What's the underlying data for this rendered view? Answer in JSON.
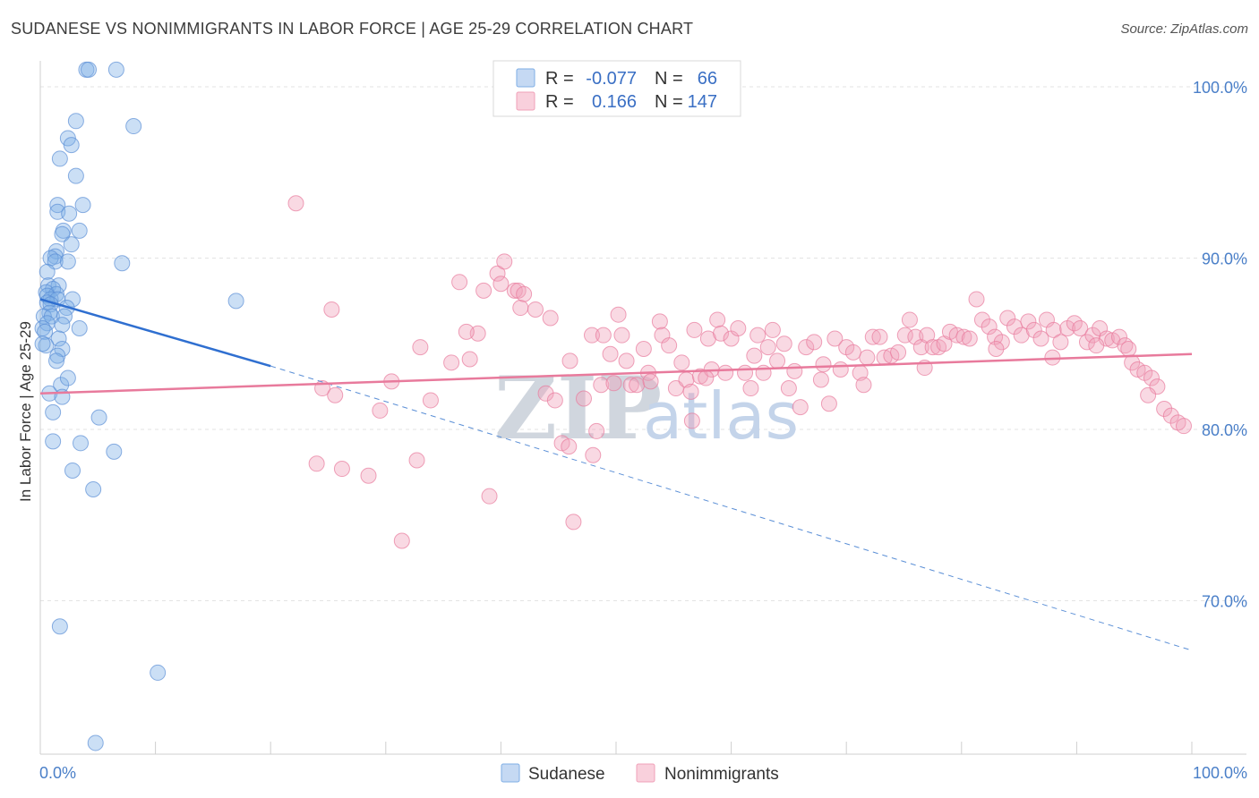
{
  "header": {
    "title": "SUDANESE VS NONIMMIGRANTS IN LABOR FORCE | AGE 25-29 CORRELATION CHART",
    "source": "Source: ZipAtlas.com"
  },
  "watermark": {
    "zip": "ZIP",
    "atlas": "atlas"
  },
  "legend": {
    "r_label": "R =",
    "n_label": "N =",
    "rows": [
      {
        "series": "Sudanese",
        "r": "-0.077",
        "n": "66",
        "color": "#7eaee6"
      },
      {
        "series": "Nonimmigrants",
        "r": "0.166",
        "n": "147",
        "color": "#f0a0b8"
      }
    ]
  },
  "chart_data": {
    "type": "scatter",
    "title": "SUDANESE VS NONIMMIGRANTS IN LABOR FORCE | AGE 25-29 CORRELATION CHART",
    "xlabel": "",
    "ylabel": "In Labor Force | Age 25-29",
    "xlim": [
      0,
      100
    ],
    "ylim": [
      60,
      102
    ],
    "x_tick_labels": [
      {
        "value": 0,
        "label": "0.0%"
      },
      {
        "value": 100,
        "label": "100.0%"
      }
    ],
    "y_tick_labels": [
      {
        "value": 70,
        "label": "70.0%"
      },
      {
        "value": 80,
        "label": "80.0%"
      },
      {
        "value": 90,
        "label": "90.0%"
      },
      {
        "value": 100,
        "label": "100.0%"
      }
    ],
    "series": [
      {
        "name": "Sudanese",
        "color": "#7eaee6",
        "stroke": "#5b8fd6",
        "points": [
          [
            4.0,
            101.0
          ],
          [
            4.2,
            101.0
          ],
          [
            6.6,
            101.0
          ],
          [
            3.1,
            98.0
          ],
          [
            8.1,
            97.7
          ],
          [
            2.4,
            97.0
          ],
          [
            2.7,
            96.6
          ],
          [
            1.7,
            95.8
          ],
          [
            3.1,
            94.8
          ],
          [
            1.5,
            93.1
          ],
          [
            3.7,
            93.1
          ],
          [
            1.5,
            92.7
          ],
          [
            2.5,
            92.6
          ],
          [
            2.0,
            91.6
          ],
          [
            3.4,
            91.6
          ],
          [
            1.9,
            91.4
          ],
          [
            2.7,
            90.8
          ],
          [
            1.4,
            90.4
          ],
          [
            1.3,
            90.1
          ],
          [
            0.9,
            90.0
          ],
          [
            1.3,
            89.8
          ],
          [
            2.4,
            89.8
          ],
          [
            7.1,
            89.7
          ],
          [
            0.6,
            89.2
          ],
          [
            0.7,
            88.4
          ],
          [
            1.6,
            88.4
          ],
          [
            1.1,
            88.2
          ],
          [
            0.5,
            88.0
          ],
          [
            1.4,
            87.9
          ],
          [
            0.6,
            87.8
          ],
          [
            0.9,
            87.6
          ],
          [
            1.5,
            87.6
          ],
          [
            2.8,
            87.6
          ],
          [
            17.0,
            87.5
          ],
          [
            0.6,
            87.4
          ],
          [
            0.9,
            87.3
          ],
          [
            2.3,
            87.1
          ],
          [
            0.8,
            86.8
          ],
          [
            0.3,
            86.6
          ],
          [
            1.0,
            86.6
          ],
          [
            2.1,
            86.6
          ],
          [
            0.6,
            86.2
          ],
          [
            1.9,
            86.1
          ],
          [
            0.2,
            85.9
          ],
          [
            3.4,
            85.9
          ],
          [
            0.4,
            85.7
          ],
          [
            1.6,
            85.3
          ],
          [
            0.5,
            84.9
          ],
          [
            1.9,
            84.7
          ],
          [
            1.5,
            84.3
          ],
          [
            1.4,
            84.0
          ],
          [
            0.8,
            82.1
          ],
          [
            1.8,
            82.6
          ],
          [
            1.9,
            81.9
          ],
          [
            1.1,
            81.0
          ],
          [
            5.1,
            80.7
          ],
          [
            3.5,
            79.2
          ],
          [
            6.4,
            78.7
          ],
          [
            2.8,
            77.6
          ],
          [
            4.6,
            76.5
          ],
          [
            1.7,
            68.5
          ],
          [
            10.2,
            65.8
          ],
          [
            4.8,
            61.7
          ],
          [
            1.1,
            79.3
          ],
          [
            0.2,
            85.0
          ],
          [
            2.4,
            83.0
          ]
        ],
        "trend": {
          "x": [
            0,
            20
          ],
          "y": [
            87.6,
            83.7
          ]
        },
        "trend_extension": {
          "x": [
            20,
            100
          ],
          "y": [
            83.7,
            67.1
          ]
        }
      },
      {
        "name": "Nonimmigrants",
        "color": "#f0a0b8",
        "stroke": "#e87a9c",
        "points": [
          [
            24.0,
            78.0
          ],
          [
            24.5,
            82.4
          ],
          [
            25.6,
            82.0
          ],
          [
            26.2,
            77.7
          ],
          [
            28.5,
            77.3
          ],
          [
            29.5,
            81.1
          ],
          [
            30.5,
            82.8
          ],
          [
            31.4,
            73.5
          ],
          [
            32.7,
            78.2
          ],
          [
            33.0,
            84.8
          ],
          [
            33.9,
            81.7
          ],
          [
            35.7,
            83.9
          ],
          [
            36.4,
            88.6
          ],
          [
            37.3,
            84.1
          ],
          [
            38.0,
            85.6
          ],
          [
            38.5,
            88.1
          ],
          [
            39.0,
            76.1
          ],
          [
            39.7,
            89.1
          ],
          [
            40.3,
            89.8
          ],
          [
            40.0,
            88.5
          ],
          [
            41.2,
            88.1
          ],
          [
            41.5,
            88.1
          ],
          [
            41.7,
            87.1
          ],
          [
            42.0,
            87.9
          ],
          [
            43.0,
            87.0
          ],
          [
            43.9,
            82.1
          ],
          [
            44.3,
            86.5
          ],
          [
            44.7,
            81.7
          ],
          [
            45.3,
            79.2
          ],
          [
            45.9,
            79.0
          ],
          [
            46.3,
            74.6
          ],
          [
            47.2,
            81.8
          ],
          [
            47.9,
            85.5
          ],
          [
            48.0,
            78.5
          ],
          [
            48.3,
            79.9
          ],
          [
            48.7,
            82.6
          ],
          [
            48.9,
            85.5
          ],
          [
            49.5,
            84.4
          ],
          [
            49.8,
            82.7
          ],
          [
            50.2,
            86.7
          ],
          [
            50.5,
            85.5
          ],
          [
            50.9,
            84.0
          ],
          [
            51.3,
            82.6
          ],
          [
            51.8,
            82.6
          ],
          [
            52.4,
            84.7
          ],
          [
            52.8,
            83.3
          ],
          [
            53.8,
            86.3
          ],
          [
            54.0,
            85.5
          ],
          [
            54.6,
            84.9
          ],
          [
            55.2,
            82.4
          ],
          [
            55.7,
            83.9
          ],
          [
            56.1,
            82.9
          ],
          [
            56.5,
            82.2
          ],
          [
            56.8,
            85.8
          ],
          [
            57.3,
            83.1
          ],
          [
            58.0,
            85.3
          ],
          [
            58.3,
            83.5
          ],
          [
            58.8,
            86.4
          ],
          [
            59.1,
            85.6
          ],
          [
            59.5,
            83.3
          ],
          [
            60.0,
            85.3
          ],
          [
            60.6,
            85.9
          ],
          [
            61.2,
            83.3
          ],
          [
            61.7,
            82.4
          ],
          [
            62.3,
            85.5
          ],
          [
            62.8,
            83.3
          ],
          [
            63.2,
            84.8
          ],
          [
            63.6,
            85.8
          ],
          [
            64.0,
            84.0
          ],
          [
            64.6,
            85.0
          ],
          [
            65.0,
            82.4
          ],
          [
            65.5,
            83.4
          ],
          [
            66.0,
            81.3
          ],
          [
            66.5,
            84.8
          ],
          [
            67.2,
            85.1
          ],
          [
            68.0,
            83.8
          ],
          [
            68.5,
            81.5
          ],
          [
            69.0,
            85.3
          ],
          [
            69.5,
            83.5
          ],
          [
            70.0,
            84.8
          ],
          [
            70.6,
            84.5
          ],
          [
            71.2,
            83.3
          ],
          [
            71.8,
            84.2
          ],
          [
            72.3,
            85.4
          ],
          [
            72.9,
            85.4
          ],
          [
            73.3,
            84.2
          ],
          [
            73.9,
            84.3
          ],
          [
            74.5,
            84.5
          ],
          [
            75.1,
            85.5
          ],
          [
            75.5,
            86.4
          ],
          [
            76.0,
            85.4
          ],
          [
            76.5,
            84.8
          ],
          [
            77.0,
            85.5
          ],
          [
            77.5,
            84.8
          ],
          [
            78.0,
            84.8
          ],
          [
            78.5,
            85.0
          ],
          [
            79.0,
            85.7
          ],
          [
            79.6,
            85.5
          ],
          [
            80.2,
            85.4
          ],
          [
            80.7,
            85.3
          ],
          [
            81.3,
            87.6
          ],
          [
            81.8,
            86.4
          ],
          [
            82.4,
            86.0
          ],
          [
            82.9,
            85.4
          ],
          [
            83.5,
            85.1
          ],
          [
            84.0,
            86.5
          ],
          [
            84.6,
            86.0
          ],
          [
            85.2,
            85.5
          ],
          [
            85.8,
            86.3
          ],
          [
            86.3,
            85.8
          ],
          [
            86.9,
            85.3
          ],
          [
            87.4,
            86.4
          ],
          [
            88.0,
            85.8
          ],
          [
            88.6,
            85.1
          ],
          [
            89.2,
            85.9
          ],
          [
            89.8,
            86.2
          ],
          [
            90.3,
            85.9
          ],
          [
            90.9,
            85.1
          ],
          [
            91.4,
            85.5
          ],
          [
            92.0,
            85.9
          ],
          [
            92.6,
            85.3
          ],
          [
            93.1,
            85.2
          ],
          [
            93.7,
            85.4
          ],
          [
            94.2,
            84.9
          ],
          [
            94.8,
            83.9
          ],
          [
            95.3,
            83.5
          ],
          [
            95.9,
            83.3
          ],
          [
            96.5,
            83.0
          ],
          [
            97.0,
            82.5
          ],
          [
            97.6,
            81.2
          ],
          [
            98.2,
            80.8
          ],
          [
            98.8,
            80.4
          ],
          [
            99.3,
            80.2
          ],
          [
            37.0,
            85.7
          ],
          [
            46.0,
            84.0
          ],
          [
            53.0,
            82.8
          ],
          [
            57.8,
            83.0
          ],
          [
            62.0,
            84.3
          ],
          [
            67.8,
            82.9
          ],
          [
            71.5,
            82.6
          ],
          [
            76.8,
            83.6
          ],
          [
            83.0,
            84.7
          ],
          [
            87.9,
            84.2
          ],
          [
            91.7,
            84.9
          ],
          [
            94.5,
            84.7
          ],
          [
            96.2,
            82.0
          ],
          [
            22.2,
            93.2
          ],
          [
            25.3,
            87.0
          ],
          [
            56.6,
            80.5
          ]
        ],
        "trend": {
          "x": [
            0,
            100
          ],
          "y": [
            82.1,
            84.4
          ]
        }
      }
    ]
  },
  "bottom_legend": {
    "items": [
      {
        "label": "Sudanese",
        "color": "#7eaee6"
      },
      {
        "label": "Nonimmigrants",
        "color": "#f0a0b8"
      }
    ]
  }
}
